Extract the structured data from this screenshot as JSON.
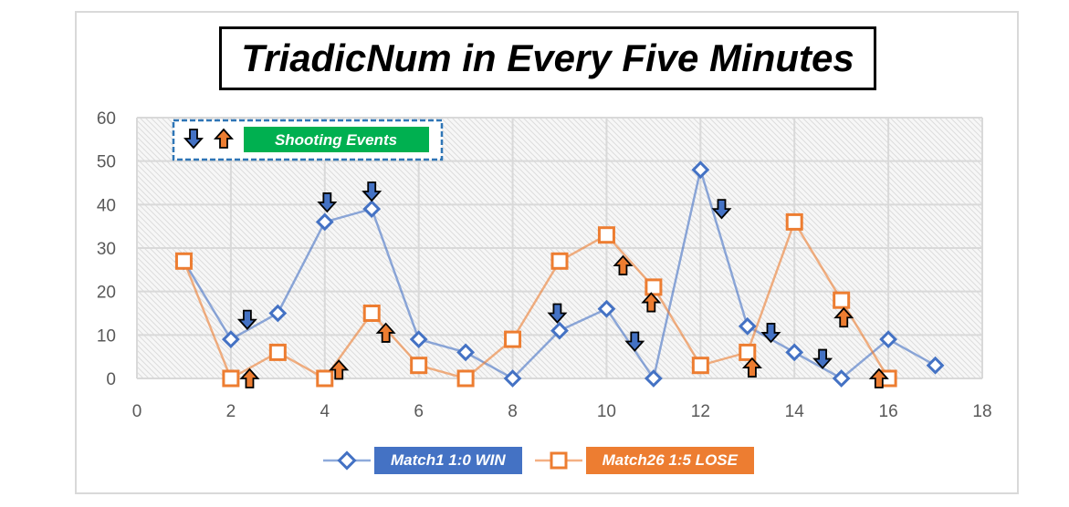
{
  "chart_data": {
    "type": "line",
    "title": "TriadicNum in Every Five Minutes",
    "xlim": [
      0,
      18
    ],
    "ylim": [
      0,
      60
    ],
    "x_ticks": [
      0,
      2,
      4,
      6,
      8,
      10,
      12,
      14,
      16,
      18
    ],
    "y_ticks": [
      0,
      10,
      20,
      30,
      40,
      50,
      60
    ],
    "grid": true,
    "legend_position": "bottom",
    "series": [
      {
        "name": "Match1 1:0 WIN",
        "color": "#4472c4",
        "marker": "diamond",
        "x": [
          1,
          2,
          3,
          4,
          5,
          6,
          7,
          8,
          9,
          10,
          11,
          12,
          13,
          14,
          15,
          16,
          17
        ],
        "y": [
          27,
          9,
          15,
          36,
          39,
          9,
          6,
          0,
          11,
          16,
          0,
          48,
          12,
          6,
          0,
          9,
          3
        ]
      },
      {
        "name": "Match26 1:5 LOSE",
        "color": "#ed7d31",
        "marker": "square",
        "x": [
          1,
          2,
          3,
          4,
          5,
          6,
          7,
          8,
          9,
          10,
          11,
          12,
          13,
          14,
          15,
          16
        ],
        "y": [
          27,
          0,
          6,
          0,
          15,
          3,
          0,
          9,
          27,
          33,
          21,
          3,
          6,
          36,
          18,
          0
        ]
      }
    ],
    "annotations": {
      "legend_label": "Shooting Events",
      "down_arrow_color": "#4472c4",
      "up_arrow_color": "#ed7d31",
      "down_arrows": [
        {
          "x": 2.35,
          "y": 13.5
        },
        {
          "x": 4.05,
          "y": 40.5
        },
        {
          "x": 5.0,
          "y": 43.0
        },
        {
          "x": 8.95,
          "y": 15.0
        },
        {
          "x": 10.6,
          "y": 8.5
        },
        {
          "x": 12.45,
          "y": 39.0
        },
        {
          "x": 13.5,
          "y": 10.5
        },
        {
          "x": 14.6,
          "y": 4.5
        }
      ],
      "up_arrows": [
        {
          "x": 2.4,
          "y": 0.0
        },
        {
          "x": 4.3,
          "y": 2.0
        },
        {
          "x": 5.3,
          "y": 10.5
        },
        {
          "x": 10.35,
          "y": 26.0
        },
        {
          "x": 10.95,
          "y": 17.5
        },
        {
          "x": 13.1,
          "y": 2.5
        },
        {
          "x": 15.05,
          "y": 14.0
        },
        {
          "x": 15.8,
          "y": 0.0
        }
      ]
    }
  }
}
